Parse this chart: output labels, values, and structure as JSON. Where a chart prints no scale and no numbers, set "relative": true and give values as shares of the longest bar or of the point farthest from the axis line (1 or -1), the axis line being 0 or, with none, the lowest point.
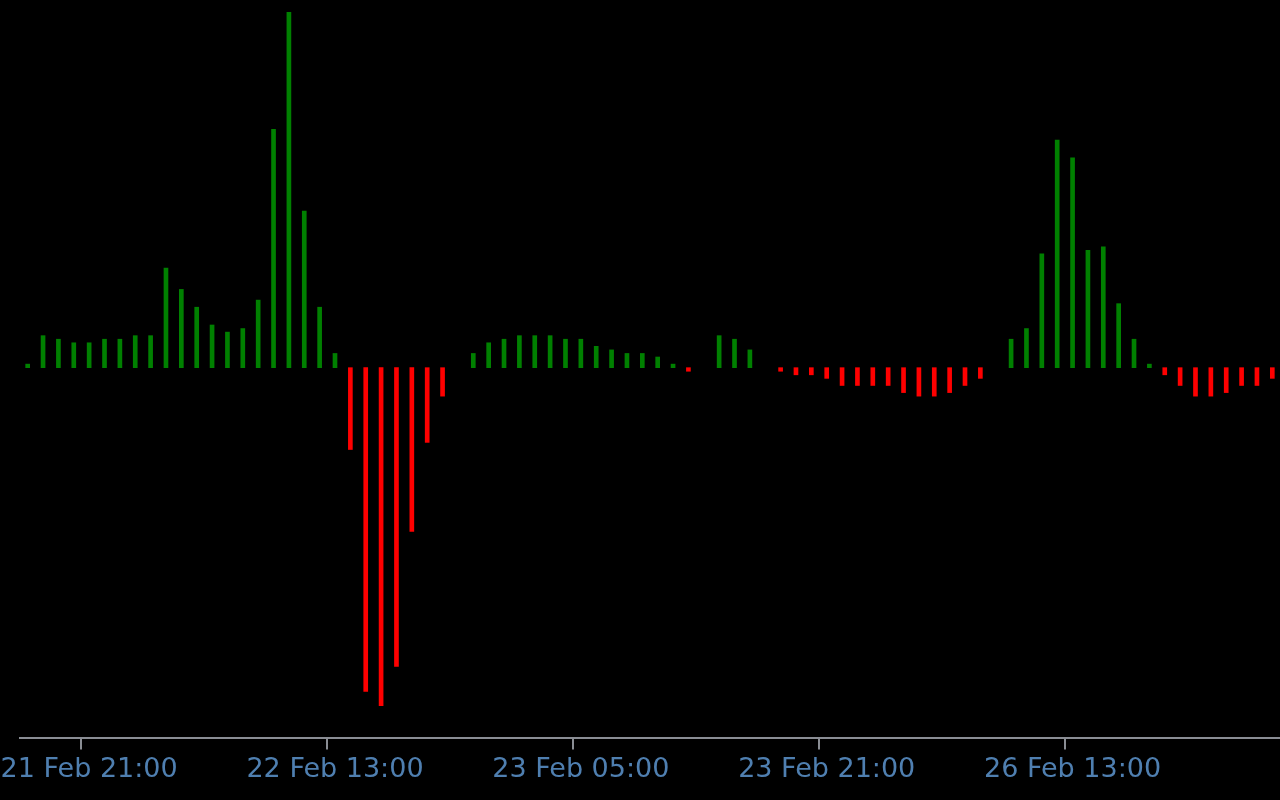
{
  "chart_data": {
    "type": "bar",
    "relative": true,
    "tick_labels": "x",
    "categories": [
      null,
      null,
      null,
      null,
      "21 Feb 21:00",
      null,
      null,
      null,
      null,
      null,
      null,
      null,
      null,
      null,
      null,
      null,
      null,
      null,
      null,
      null,
      "22 Feb 13:00",
      null,
      null,
      null,
      null,
      null,
      null,
      null,
      null,
      null,
      null,
      null,
      null,
      null,
      null,
      null,
      "23 Feb 05:00",
      null,
      null,
      null,
      null,
      null,
      null,
      null,
      null,
      null,
      null,
      null,
      null,
      null,
      null,
      null,
      "23 Feb 21:00",
      null,
      null,
      null,
      null,
      null,
      null,
      null,
      null,
      null,
      null,
      null,
      null,
      null,
      null,
      null,
      "26 Feb 13:00",
      null,
      null,
      null,
      null,
      null,
      null,
      null,
      null,
      null,
      null,
      null,
      null,
      null
    ],
    "values": [
      0.01,
      0.09,
      0.08,
      0.07,
      0.07,
      0.08,
      0.08,
      0.09,
      0.09,
      0.28,
      0.22,
      0.17,
      0.12,
      0.1,
      0.11,
      0.19,
      0.67,
      1,
      0.44,
      0.17,
      0.04,
      -0.23,
      -0.91,
      -0.95,
      -0.84,
      -0.46,
      -0.21,
      -0.08,
      null,
      0.04,
      0.07,
      0.08,
      0.09,
      0.09,
      0.09,
      0.08,
      0.08,
      0.06,
      0.05,
      0.04,
      0.04,
      0.03,
      0.01,
      -0.01,
      null,
      0.09,
      0.08,
      0.05,
      null,
      -0.01,
      -0.02,
      -0.02,
      -0.03,
      -0.05,
      -0.05,
      -0.05,
      -0.05,
      -0.07,
      -0.08,
      -0.08,
      -0.07,
      -0.05,
      -0.03,
      null,
      0.08,
      0.11,
      0.32,
      0.64,
      0.59,
      0.33,
      0.34,
      0.18,
      0.08,
      0.01,
      -0.02,
      -0.05,
      -0.08,
      -0.08,
      -0.07,
      -0.05,
      -0.05,
      -0.03
    ],
    "colors": [
      "#008000",
      "#008000",
      "#008000",
      "#008000",
      "#008000",
      "#008000",
      "#008000",
      "#008000",
      "#008000",
      "#008000",
      "#008000",
      "#008000",
      "#008000",
      "#008000",
      "#008000",
      "#008000",
      "#008000",
      "#008000",
      "#008000",
      "#008000",
      "#008000",
      "#ff0000",
      "#ff0000",
      "#ff0000",
      "#ff0000",
      "#ff0000",
      "#ff0000",
      "#ff0000",
      null,
      "#008000",
      "#008000",
      "#008000",
      "#008000",
      "#008000",
      "#008000",
      "#008000",
      "#008000",
      "#008000",
      "#008000",
      "#008000",
      "#008000",
      "#008000",
      "#008000",
      "#ff0000",
      null,
      "#008000",
      "#008000",
      "#008000",
      null,
      "#ff0000",
      "#ff0000",
      "#ff0000",
      "#ff0000",
      "#ff0000",
      "#ff0000",
      "#ff0000",
      "#ff0000",
      "#ff0000",
      "#ff0000",
      "#ff0000",
      "#ff0000",
      "#ff0000",
      "#ff0000",
      null,
      "#008000",
      "#008000",
      "#008000",
      "#008000",
      "#008000",
      "#008000",
      "#008000",
      "#008000",
      "#008000",
      "#008000",
      "#ff0000",
      "#ff0000",
      "#ff0000",
      "#ff0000",
      "#ff0000",
      "#ff0000",
      "#ff0000",
      "#ff0000"
    ]
  }
}
